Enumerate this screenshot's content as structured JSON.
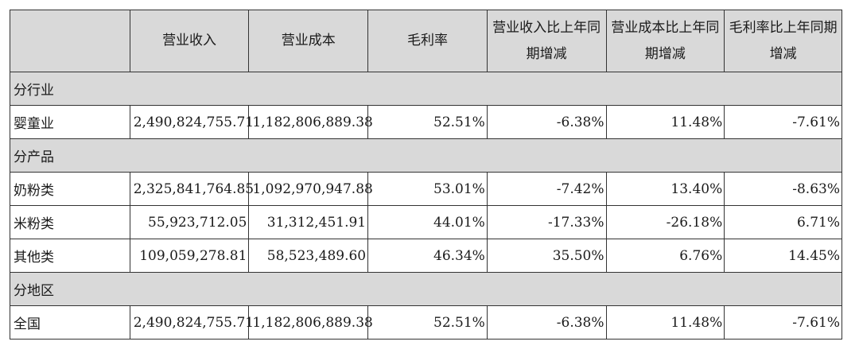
{
  "headers": [
    "",
    "营业收入",
    "营业成本",
    "毛利率",
    "营业收入比上年同期增减",
    "营业成本比上年同期增减",
    "毛利率比上年同期增减"
  ],
  "sections": [
    {
      "title": "分行业",
      "rows": [
        {
          "label": "婴童业",
          "values": [
            "2,490,824,755.71",
            "1,182,806,889.38",
            "52.51%",
            "-6.38%",
            "11.48%",
            "-7.61%"
          ]
        }
      ]
    },
    {
      "title": "分产品",
      "rows": [
        {
          "label": "奶粉类",
          "values": [
            "2,325,841,764.85",
            "1,092,970,947.88",
            "53.01%",
            "-7.42%",
            "13.40%",
            "-8.63%"
          ]
        },
        {
          "label": "米粉类",
          "values": [
            "55,923,712.05",
            "31,312,451.91",
            "44.01%",
            "-17.33%",
            "-26.18%",
            "6.71%"
          ]
        },
        {
          "label": "其他类",
          "values": [
            "109,059,278.81",
            "58,523,489.60",
            "46.34%",
            "35.50%",
            "6.76%",
            "14.45%"
          ]
        }
      ]
    },
    {
      "title": "分地区",
      "rows": [
        {
          "label": "全国",
          "values": [
            "2,490,824,755.71",
            "1,182,806,889.38",
            "52.51%",
            "-6.38%",
            "11.48%",
            "-7.61%"
          ]
        }
      ]
    }
  ]
}
